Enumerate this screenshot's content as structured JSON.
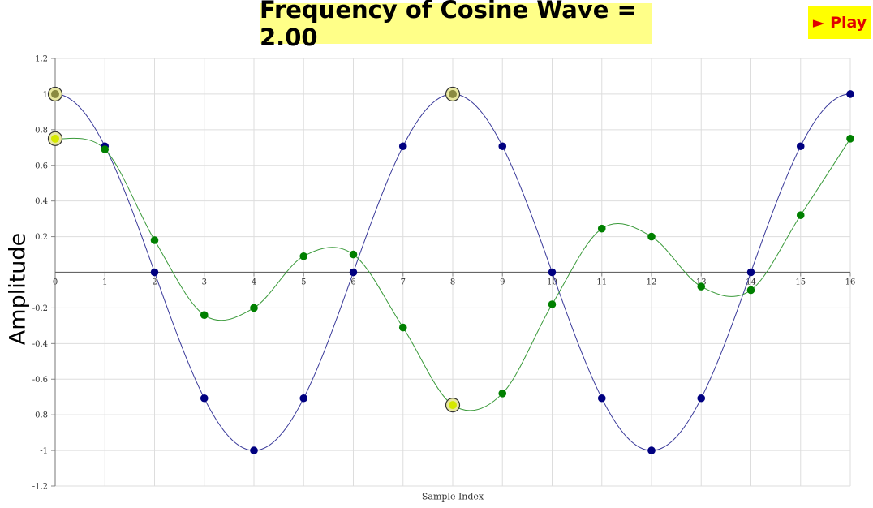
{
  "title": "Frequency of Cosine Wave = 2.00",
  "play_label": "► Play",
  "colors": {
    "title_bg": "#ffff88",
    "play_bg": "#ffff00",
    "play_text": "#e00000",
    "cosine": "#000080",
    "cosine_line": "#3a3a9a",
    "signal": "#008000",
    "signal_line": "#3a9a3a",
    "highlight": "#d4e800",
    "grid": "#dddddd"
  },
  "chart_data": {
    "type": "line",
    "xlabel": "Sample Index",
    "ylabel": "Amplitude",
    "xlim": [
      0,
      16
    ],
    "ylim": [
      -1.2,
      1.2
    ],
    "x_ticks": [
      "0",
      "1",
      "2",
      "3",
      "4",
      "5",
      "6",
      "7",
      "8",
      "9",
      "10",
      "11",
      "12",
      "13",
      "14",
      "15",
      "16"
    ],
    "y_ticks": [
      "1.2",
      "1",
      "0.8",
      "0.6",
      "0.4",
      "0.2",
      "-0.2",
      "-0.4",
      "-0.6",
      "-0.8",
      "-1",
      "-1.2"
    ],
    "grid": true,
    "x": [
      0,
      1,
      2,
      3,
      4,
      5,
      6,
      7,
      8,
      9,
      10,
      11,
      12,
      13,
      14,
      15,
      16
    ],
    "series": [
      {
        "values": [
          1,
          0.707,
          0,
          -0.707,
          -1,
          -0.707,
          0,
          0.707,
          1,
          0.707,
          0,
          -0.707,
          -1,
          -0.707,
          0,
          0.707,
          1
        ],
        "highlighted": [
          0,
          8
        ]
      },
      {
        "values": [
          0.75,
          0.69,
          0.18,
          -0.24,
          -0.2,
          0.09,
          0.1,
          -0.31,
          -0.745,
          -0.68,
          -0.18,
          0.245,
          0.2,
          -0.08,
          -0.1,
          0.32,
          0.75
        ],
        "highlighted": [
          0,
          8
        ]
      }
    ]
  }
}
